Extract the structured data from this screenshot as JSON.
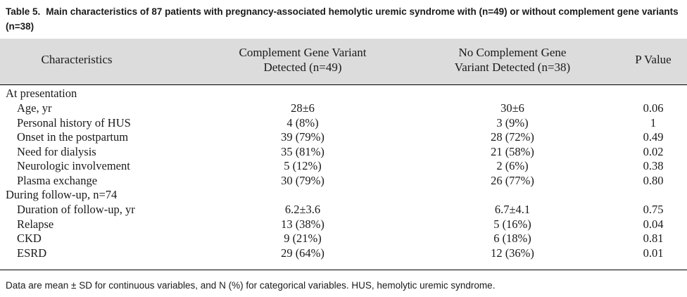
{
  "caption": {
    "label": "Table 5.",
    "text": "Main characteristics of 87 patients with pregnancy-associated hemolytic uremic syndrome with (n=49) or without complement gene variants (n=38)"
  },
  "headers": {
    "characteristics": "Characteristics",
    "variant_line1": "Complement Gene Variant",
    "variant_line2": "Detected (n=49)",
    "novariant_line1": "No Complement Gene",
    "novariant_line2": "Variant Detected (n=38)",
    "pvalue": "P Value"
  },
  "sections": [
    {
      "title": "At presentation",
      "rows": [
        {
          "label": "Age, yr",
          "variant": "28±6",
          "novariant": "30±6",
          "p": "0.06"
        },
        {
          "label": "Personal history of HUS",
          "variant": "4 (8%)",
          "novariant": "3 (9%)",
          "p": "1"
        },
        {
          "label": "Onset in the postpartum",
          "variant": "39 (79%)",
          "novariant": "28 (72%)",
          "p": "0.49"
        },
        {
          "label": "Need for dialysis",
          "variant": "35 (81%)",
          "novariant": "21 (58%)",
          "p": "0.02"
        },
        {
          "label": "Neurologic involvement",
          "variant": "5 (12%)",
          "novariant": "2 (6%)",
          "p": "0.38"
        },
        {
          "label": "Plasma exchange",
          "variant": "30 (79%)",
          "novariant": "26 (77%)",
          "p": "0.80"
        }
      ]
    },
    {
      "title": "During follow-up, n=74",
      "rows": [
        {
          "label": "Duration of follow-up, yr",
          "variant": "6.2±3.6",
          "novariant": "6.7±4.1",
          "p": "0.75"
        },
        {
          "label": "Relapse",
          "variant": "13 (38%)",
          "novariant": "5 (16%)",
          "p": "0.04"
        },
        {
          "label": "CKD",
          "variant": "9 (21%)",
          "novariant": "6 (18%)",
          "p": "0.81"
        },
        {
          "label": "ESRD",
          "variant": "29 (64%)",
          "novariant": "12 (36%)",
          "p": "0.01"
        }
      ]
    }
  ],
  "footnote": "Data are mean ± SD for continuous variables, and N (%) for categorical variables. HUS, hemolytic uremic syndrome."
}
